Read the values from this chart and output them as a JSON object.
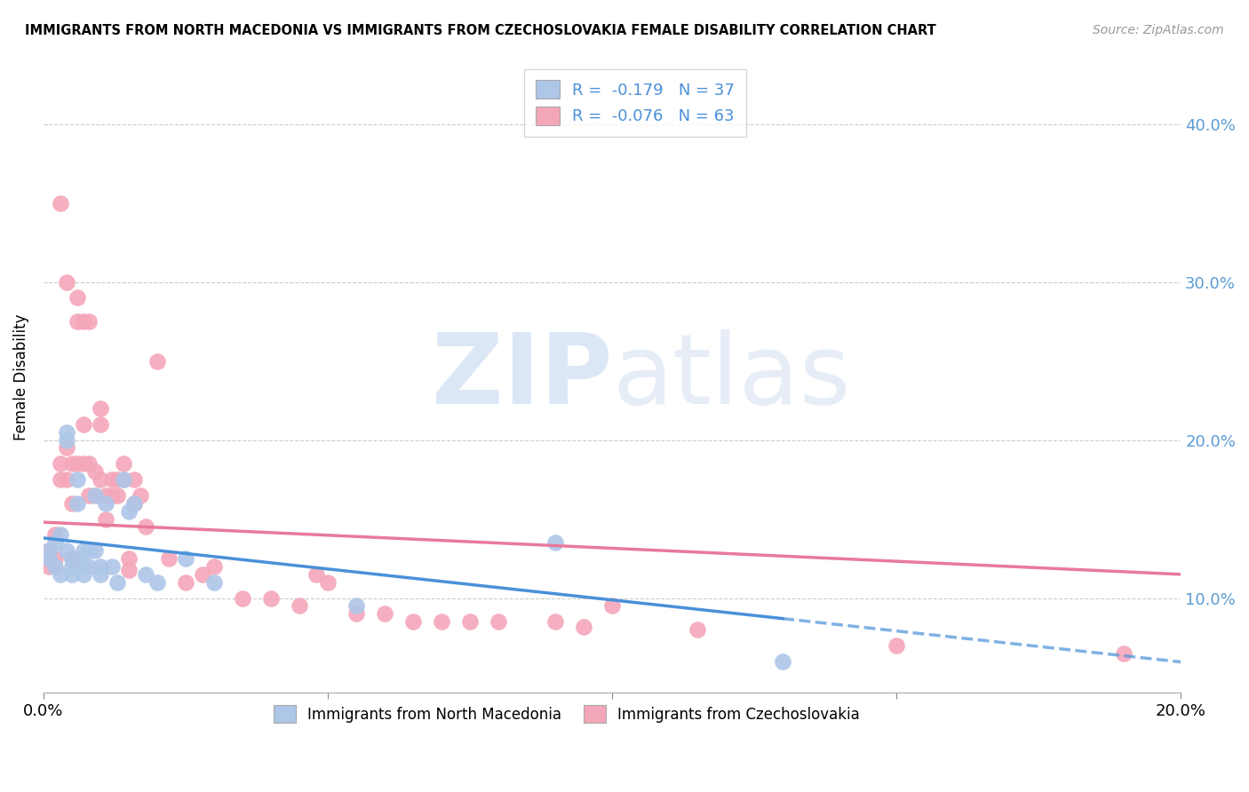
{
  "title": "IMMIGRANTS FROM NORTH MACEDONIA VS IMMIGRANTS FROM CZECHOSLOVAKIA FEMALE DISABILITY CORRELATION CHART",
  "source": "Source: ZipAtlas.com",
  "ylabel": "Female Disability",
  "xlim": [
    0.0,
    0.2
  ],
  "ylim": [
    0.04,
    0.44
  ],
  "yticks": [
    0.1,
    0.2,
    0.3,
    0.4
  ],
  "ytick_labels": [
    "10.0%",
    "20.0%",
    "30.0%",
    "40.0%"
  ],
  "xticks": [
    0.0,
    0.05,
    0.1,
    0.15,
    0.2
  ],
  "xtick_labels": [
    "0.0%",
    "",
    "",
    "",
    "20.0%"
  ],
  "blue_R": -0.179,
  "blue_N": 37,
  "pink_R": -0.076,
  "pink_N": 63,
  "blue_color": "#aec6e8",
  "pink_color": "#f4a7b9",
  "blue_line_color": "#4a90d9",
  "pink_line_color": "#e87a9a",
  "blue_x": [
    0.001,
    0.001,
    0.002,
    0.002,
    0.003,
    0.003,
    0.004,
    0.004,
    0.004,
    0.005,
    0.005,
    0.005,
    0.006,
    0.006,
    0.006,
    0.007,
    0.007,
    0.007,
    0.008,
    0.008,
    0.009,
    0.009,
    0.01,
    0.01,
    0.011,
    0.012,
    0.013,
    0.014,
    0.015,
    0.016,
    0.018,
    0.02,
    0.025,
    0.03,
    0.055,
    0.09,
    0.13
  ],
  "blue_y": [
    0.13,
    0.125,
    0.135,
    0.12,
    0.14,
    0.115,
    0.2,
    0.205,
    0.13,
    0.125,
    0.12,
    0.115,
    0.175,
    0.16,
    0.125,
    0.13,
    0.12,
    0.115,
    0.13,
    0.12,
    0.165,
    0.13,
    0.12,
    0.115,
    0.16,
    0.12,
    0.11,
    0.175,
    0.155,
    0.16,
    0.115,
    0.11,
    0.125,
    0.11,
    0.095,
    0.135,
    0.06
  ],
  "pink_x": [
    0.001,
    0.001,
    0.002,
    0.002,
    0.003,
    0.003,
    0.003,
    0.004,
    0.004,
    0.004,
    0.005,
    0.005,
    0.005,
    0.006,
    0.006,
    0.006,
    0.007,
    0.007,
    0.007,
    0.008,
    0.008,
    0.008,
    0.009,
    0.009,
    0.01,
    0.01,
    0.01,
    0.011,
    0.011,
    0.012,
    0.012,
    0.013,
    0.013,
    0.014,
    0.014,
    0.015,
    0.015,
    0.016,
    0.016,
    0.017,
    0.018,
    0.02,
    0.022,
    0.025,
    0.028,
    0.03,
    0.035,
    0.04,
    0.045,
    0.048,
    0.05,
    0.055,
    0.06,
    0.065,
    0.07,
    0.075,
    0.08,
    0.09,
    0.095,
    0.1,
    0.115,
    0.15,
    0.19
  ],
  "pink_y": [
    0.13,
    0.12,
    0.14,
    0.125,
    0.185,
    0.175,
    0.35,
    0.3,
    0.195,
    0.175,
    0.185,
    0.16,
    0.125,
    0.29,
    0.275,
    0.185,
    0.275,
    0.21,
    0.185,
    0.275,
    0.185,
    0.165,
    0.18,
    0.165,
    0.22,
    0.21,
    0.175,
    0.165,
    0.15,
    0.175,
    0.165,
    0.175,
    0.165,
    0.185,
    0.175,
    0.125,
    0.118,
    0.175,
    0.16,
    0.165,
    0.145,
    0.25,
    0.125,
    0.11,
    0.115,
    0.12,
    0.1,
    0.1,
    0.095,
    0.115,
    0.11,
    0.09,
    0.09,
    0.085,
    0.085,
    0.085,
    0.085,
    0.085,
    0.082,
    0.095,
    0.08,
    0.07,
    0.065
  ]
}
